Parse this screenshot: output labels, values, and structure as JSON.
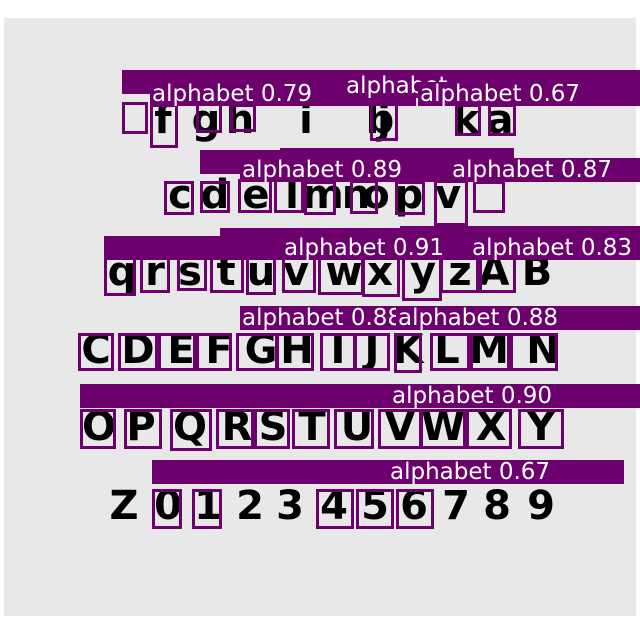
{
  "image": {
    "glyph_rows": [
      "f g h i j k a b",
      "c d e l m n o p v",
      "q r s t u v w x y z A B",
      "C D E F G H I J K L M N",
      "O P Q R S T U V W X Y",
      "Z 0 1 2 3 4 5 6 7 8 9"
    ]
  },
  "detections": [
    {
      "label": "alphabet 0.79"
    },
    {
      "label": "alphabet 0.68"
    },
    {
      "label": "alphabet 0.67"
    },
    {
      "label": "alphabet 0.89"
    },
    {
      "label": "alphabet 0.87"
    },
    {
      "label": "alphabet 0.91"
    },
    {
      "label": "alphabet 0.83"
    },
    {
      "label": "alphabet 0.88"
    },
    {
      "label": "alphabet 0.90"
    },
    {
      "label": "alphabet 0.67"
    }
  ],
  "colors": {
    "box": "#6c006c",
    "tag_background": "#6c006c",
    "tag_text": "#ffffff",
    "panel": "#e8e8e8",
    "glyph": "#000000"
  }
}
